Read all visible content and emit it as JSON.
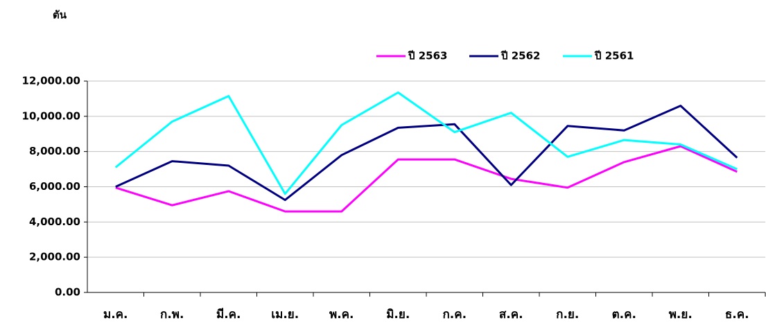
{
  "chart_data": {
    "type": "line",
    "y_label": "ตัน",
    "categories": [
      "ม.ค.",
      "ก.พ.",
      "มี.ค.",
      "เม.ย.",
      "พ.ค.",
      "มิ.ย.",
      "ก.ค.",
      "ส.ค.",
      "ก.ย.",
      "ต.ค.",
      "พ.ย.",
      "ธ.ค."
    ],
    "series": [
      {
        "name": "ปี 2563",
        "color": "#ff00ff",
        "values": [
          5950,
          4950,
          5750,
          4600,
          4600,
          7550,
          7550,
          6450,
          5950,
          7400,
          8300,
          6850
        ]
      },
      {
        "name": "ปี 2562",
        "color": "#000080",
        "values": [
          6000,
          7450,
          7200,
          5250,
          7800,
          9350,
          9550,
          6100,
          9450,
          9200,
          10600,
          7650
        ]
      },
      {
        "name": "ปี 2561",
        "color": "#00ffff",
        "values": [
          7100,
          9700,
          11150,
          5600,
          9500,
          11350,
          9100,
          10200,
          7700,
          8650,
          8400,
          7000
        ]
      }
    ],
    "ylim": [
      0,
      12000
    ],
    "yticks": [
      {
        "value": 0,
        "label": "0.00"
      },
      {
        "value": 2000,
        "label": "2,000.00"
      },
      {
        "value": 4000,
        "label": "4,000.00"
      },
      {
        "value": 6000,
        "label": "6,000.00"
      },
      {
        "value": 8000,
        "label": "8,000.00"
      },
      {
        "value": 10000,
        "label": "10,000.00"
      },
      {
        "value": 12000,
        "label": "12,000.00"
      }
    ],
    "grid": true,
    "legend": "top"
  }
}
